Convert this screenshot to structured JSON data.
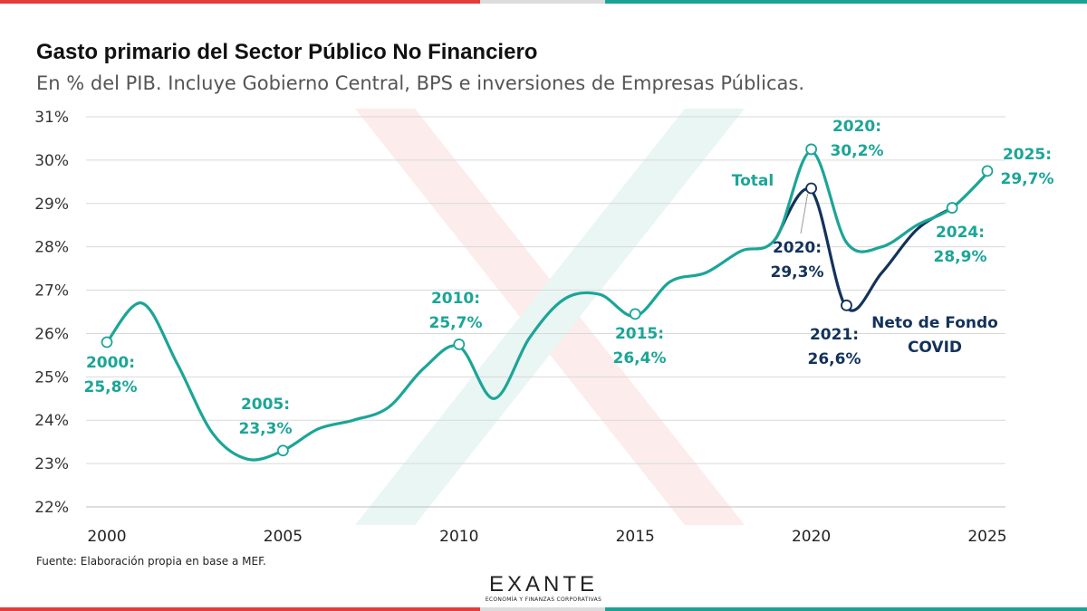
{
  "header": {
    "title": "Gasto primario del Sector Público No Financiero",
    "subtitle": "En % del PIB. Incluye Gobierno Central, BPS e inversiones de Empresas Públicas."
  },
  "footer": {
    "source": "Fuente: Elaboración propia en base a MEF.",
    "logo_name": "EXANTE",
    "logo_tagline": "ECONOMÍA Y FINANZAS CORPORATIVAS"
  },
  "colors": {
    "total": "#1ba597",
    "neto": "#13325b",
    "brand_red": "#e63b3b",
    "brand_teal": "#1aa394"
  },
  "chart_data": {
    "type": "line",
    "title": "Gasto primario del Sector Público No Financiero",
    "xlabel": "",
    "ylabel": "% del PIB",
    "xlim": [
      2000,
      2025
    ],
    "ylim": [
      22,
      31
    ],
    "y_ticks": [
      "22%",
      "23%",
      "24%",
      "25%",
      "26%",
      "27%",
      "28%",
      "29%",
      "30%",
      "31%"
    ],
    "x_ticks": [
      "2000",
      "2005",
      "2010",
      "2015",
      "2020",
      "2025"
    ],
    "grid": true,
    "series": [
      {
        "name": "Total",
        "x": [
          2000,
          2001,
          2002,
          2003,
          2004,
          2005,
          2006,
          2007,
          2008,
          2009,
          2010,
          2011,
          2012,
          2013,
          2014,
          2015,
          2016,
          2017,
          2018,
          2019,
          2020,
          2021,
          2022,
          2023,
          2024,
          2025
        ],
        "values": [
          25.8,
          26.7,
          25.3,
          23.7,
          23.1,
          23.3,
          23.8,
          24.0,
          24.3,
          25.2,
          25.7,
          24.5,
          25.9,
          26.8,
          26.9,
          26.4,
          27.2,
          27.4,
          27.9,
          28.2,
          30.2,
          28.1,
          28.0,
          28.5,
          28.9,
          29.7
        ]
      },
      {
        "name": "Neto de Fondo COVID",
        "x": [
          2019,
          2020,
          2021,
          2022,
          2023,
          2024
        ],
        "values": [
          28.2,
          29.3,
          26.6,
          27.4,
          28.4,
          28.9
        ]
      }
    ],
    "annotations": [
      {
        "id": "a2000",
        "year_label": "2000:",
        "value_label": "25,8%",
        "series": "Total"
      },
      {
        "id": "a2005",
        "year_label": "2005:",
        "value_label": "23,3%",
        "series": "Total"
      },
      {
        "id": "a2010",
        "year_label": "2010:",
        "value_label": "25,7%",
        "series": "Total"
      },
      {
        "id": "a2015",
        "year_label": "2015:",
        "value_label": "26,4%",
        "series": "Total"
      },
      {
        "id": "a2020t",
        "year_label": "2020:",
        "value_label": "30,2%",
        "series": "Total"
      },
      {
        "id": "a2020n",
        "year_label": "2020:",
        "value_label": "29,3%",
        "series": "Neto de Fondo COVID"
      },
      {
        "id": "a2021n",
        "year_label": "2021:",
        "value_label": "26,6%",
        "series": "Neto de Fondo COVID"
      },
      {
        "id": "a2024",
        "year_label": "2024:",
        "value_label": "28,9%",
        "series": "Total"
      },
      {
        "id": "a2025",
        "year_label": "2025:",
        "value_label": "29,7%",
        "series": "Total"
      }
    ],
    "series_labels": [
      {
        "id": "total",
        "lines": [
          "Total"
        ],
        "series": "Total"
      },
      {
        "id": "neto",
        "lines": [
          "Neto de Fondo",
          "COVID"
        ],
        "series": "Neto de Fondo COVID"
      }
    ],
    "markers": [
      {
        "series": "Total",
        "x": 2000,
        "y": 25.8
      },
      {
        "series": "Total",
        "x": 2005,
        "y": 23.3
      },
      {
        "series": "Total",
        "x": 2010,
        "y": 25.75
      },
      {
        "series": "Total",
        "x": 2015,
        "y": 26.45
      },
      {
        "series": "Total",
        "x": 2020,
        "y": 30.25
      },
      {
        "series": "Neto de Fondo COVID",
        "x": 2020,
        "y": 29.35
      },
      {
        "series": "Neto de Fondo COVID",
        "x": 2021,
        "y": 26.65
      },
      {
        "series": "Total",
        "x": 2024,
        "y": 28.9
      },
      {
        "series": "Total",
        "x": 2025,
        "y": 29.75
      }
    ]
  }
}
